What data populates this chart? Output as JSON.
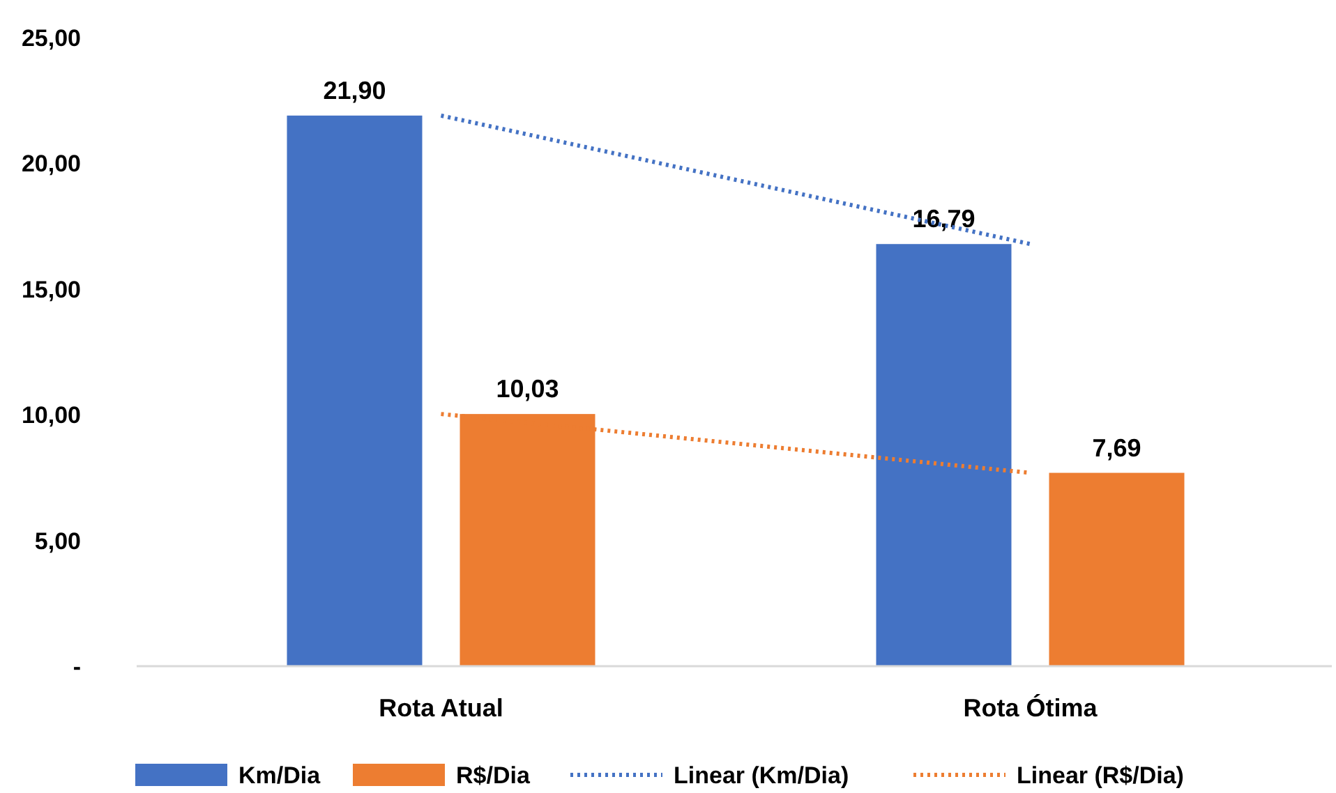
{
  "chart_data": {
    "type": "bar",
    "categories": [
      "Rota Atual",
      "Rota Ótima"
    ],
    "series": [
      {
        "name": "Km/Dia",
        "color": "#4472c4",
        "values": [
          21.9,
          16.79
        ],
        "value_labels": [
          "21,90",
          "16,79"
        ]
      },
      {
        "name": "R$/Dia",
        "color": "#ed7d31",
        "values": [
          10.03,
          7.69
        ],
        "value_labels": [
          "10,03",
          "7,69"
        ]
      },
      {
        "name": "Linear (Km/Dia)",
        "type": "line",
        "color": "#4472c4",
        "x": [
          "Rota Atual",
          "Rota Ótima"
        ],
        "values": [
          21.9,
          16.79
        ],
        "line_style": "dotted",
        "marker": "none"
      },
      {
        "name": "Linear (R$/Dia)",
        "type": "line",
        "color": "#ed7d31",
        "x": [
          "Rota Atual",
          "Rota Ótima"
        ],
        "values": [
          10.03,
          7.69
        ],
        "line_style": "dotted",
        "marker": "none"
      }
    ],
    "ylim": [
      0,
      25
    ],
    "yticks": [
      {
        "value": 0,
        "label": "-"
      },
      {
        "value": 5,
        "label": "5,00"
      },
      {
        "value": 10,
        "label": "10,00"
      },
      {
        "value": 15,
        "label": "15,00"
      },
      {
        "value": 20,
        "label": "20,00"
      },
      {
        "value": 25,
        "label": "25,00"
      }
    ],
    "grid": false,
    "legend": "bottom"
  }
}
